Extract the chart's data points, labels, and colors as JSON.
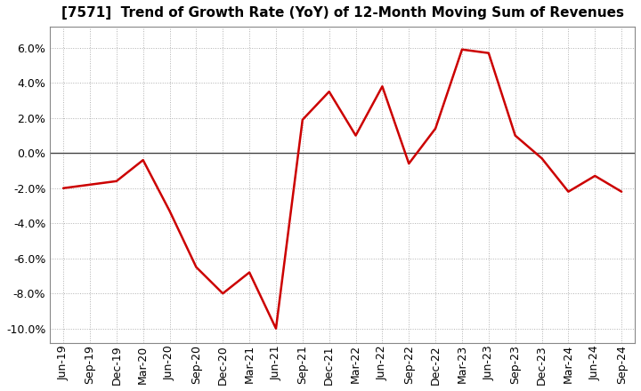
{
  "title": "[7571]  Trend of Growth Rate (YoY) of 12-Month Moving Sum of Revenues",
  "line_color": "#cc0000",
  "line_width": 1.8,
  "background_color": "#ffffff",
  "plot_bg_color": "#ffffff",
  "grid_color": "#b0b0b0",
  "zero_line_color": "#444444",
  "ylim": [
    -0.108,
    0.072
  ],
  "yticks": [
    -0.1,
    -0.08,
    -0.06,
    -0.04,
    -0.02,
    0.0,
    0.02,
    0.04,
    0.06
  ],
  "values": [
    -0.02,
    -0.018,
    -0.016,
    -0.004,
    -0.033,
    -0.065,
    -0.08,
    -0.068,
    -0.1,
    0.019,
    0.035,
    0.01,
    0.038,
    -0.006,
    0.014,
    0.059,
    0.057,
    0.01,
    -0.003,
    -0.022,
    -0.013,
    -0.022
  ],
  "xtick_labels": [
    "Jun-19",
    "Sep-19",
    "Dec-19",
    "Mar-20",
    "Jun-20",
    "Sep-20",
    "Dec-20",
    "Mar-21",
    "Jun-21",
    "Sep-21",
    "Dec-21",
    "Mar-22",
    "Jun-22",
    "Sep-22",
    "Dec-22",
    "Mar-23",
    "Jun-23",
    "Sep-23",
    "Dec-23",
    "Mar-24",
    "Jun-24",
    "Sep-24"
  ],
  "title_fontsize": 11,
  "tick_fontsize": 9
}
